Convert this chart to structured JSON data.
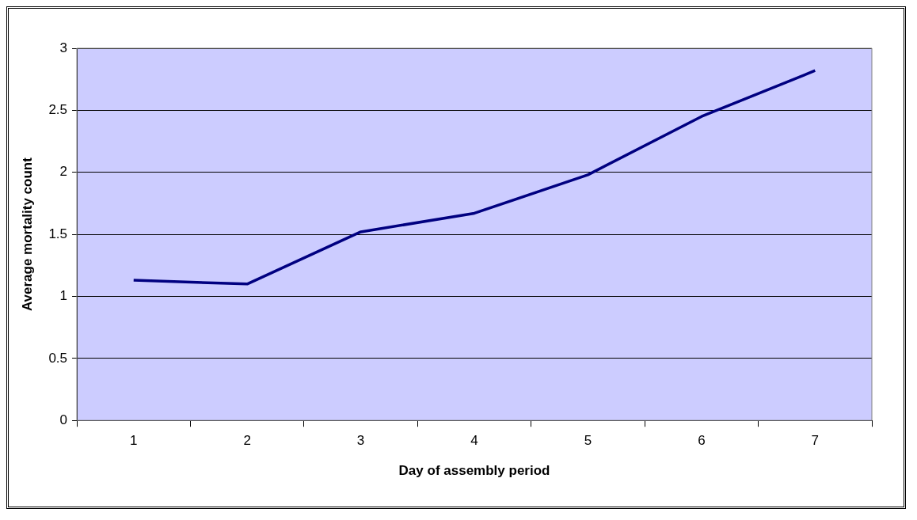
{
  "chart_data": {
    "type": "line",
    "xlabel": "Day of assembly period",
    "ylabel": "Average mortality count",
    "categories": [
      "1",
      "2",
      "3",
      "4",
      "5",
      "6",
      "7"
    ],
    "series": [
      {
        "color": "#000080",
        "values": [
          1.13,
          1.1,
          1.52,
          1.67,
          1.98,
          2.45,
          2.82
        ]
      }
    ],
    "ylim": [
      0,
      3
    ],
    "yticks": [
      0,
      0.5,
      1,
      1.5,
      2,
      2.5,
      3
    ],
    "grid": "y",
    "legend": false,
    "marker": "none",
    "line_style": "solid"
  }
}
